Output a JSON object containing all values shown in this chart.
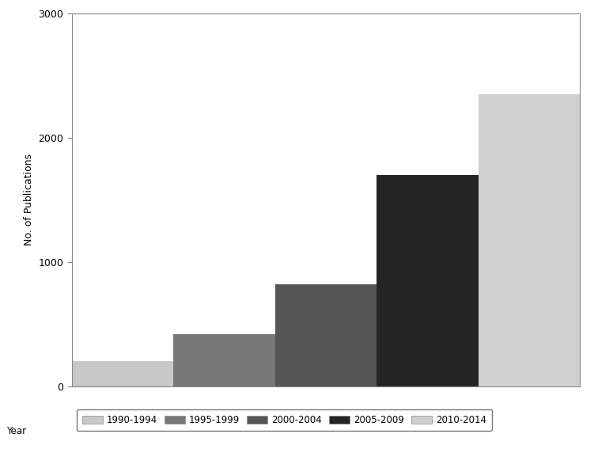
{
  "categories": [
    "1990-1994",
    "1995-1999",
    "2000-2004",
    "2005-2009",
    "2010-2014"
  ],
  "values": [
    200,
    420,
    820,
    1700,
    2350
  ],
  "bar_colors": [
    "#c8c8c8",
    "#787878",
    "#555555",
    "#252525",
    "#d0d0d0"
  ],
  "ylabel": "No. of Publications",
  "ylim": [
    0,
    3000
  ],
  "yticks": [
    0,
    1000,
    2000,
    3000
  ],
  "legend_label": "Year",
  "background_color": "#ffffff",
  "figsize": [
    7.56,
    5.67
  ],
  "dpi": 100
}
